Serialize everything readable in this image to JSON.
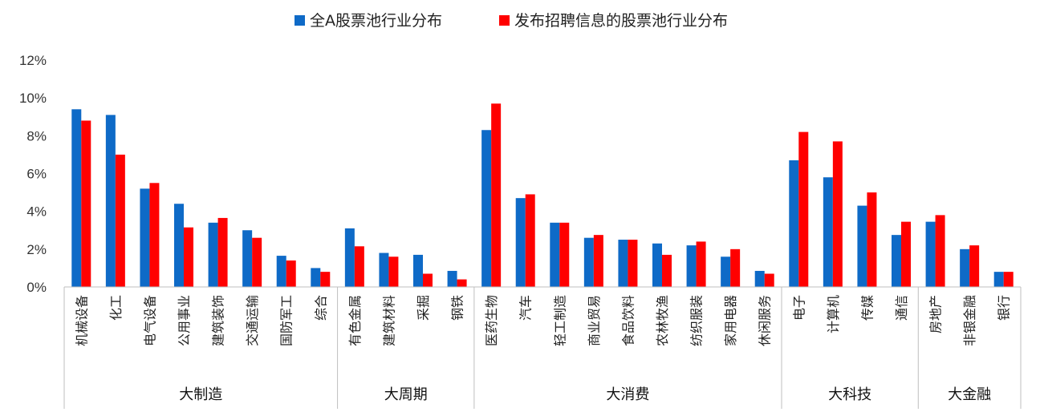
{
  "chart_data": {
    "type": "bar",
    "legend_position": "top-center",
    "ylim": [
      0,
      12
    ],
    "yticks": [
      "0%",
      "2%",
      "4%",
      "6%",
      "8%",
      "10%",
      "12%"
    ],
    "grid": false,
    "colors": {
      "series_a": "#0e6ac7",
      "series_b": "#ff0000"
    },
    "categories": [
      "机械设备",
      "化工",
      "电气设备",
      "公用事业",
      "建筑装饰",
      "交通运输",
      "国防军工",
      "综合",
      "有色金属",
      "建筑材料",
      "采掘",
      "钢铁",
      "医药生物",
      "汽车",
      "轻工制造",
      "商业贸易",
      "食品饮料",
      "农林牧渔",
      "纺织服装",
      "家用电器",
      "休闲服务",
      "电子",
      "计算机",
      "传媒",
      "通信",
      "房地产",
      "非银金融",
      "银行"
    ],
    "groups": [
      {
        "name": "大制造",
        "count": 8
      },
      {
        "name": "大周期",
        "count": 4
      },
      {
        "name": "大消费",
        "count": 9
      },
      {
        "name": "大科技",
        "count": 4
      },
      {
        "name": "大金融",
        "count": 3
      }
    ],
    "series": [
      {
        "name": "全A股票池行业分布",
        "values": [
          9.4,
          9.1,
          5.2,
          4.4,
          3.4,
          3.0,
          1.65,
          1.0,
          3.1,
          1.8,
          1.7,
          0.85,
          8.3,
          4.7,
          3.4,
          2.6,
          2.5,
          2.3,
          2.2,
          1.6,
          0.85,
          6.7,
          5.8,
          4.3,
          2.75,
          3.45,
          2.0,
          0.8
        ]
      },
      {
        "name": "发布招聘信息的股票池行业分布",
        "values": [
          8.8,
          7.0,
          5.5,
          3.15,
          3.65,
          2.6,
          1.4,
          0.8,
          2.15,
          1.6,
          0.7,
          0.4,
          9.7,
          4.9,
          3.4,
          2.75,
          2.5,
          1.7,
          2.4,
          2.0,
          0.7,
          8.2,
          7.7,
          5.0,
          3.45,
          3.8,
          2.2,
          0.8
        ]
      }
    ]
  }
}
